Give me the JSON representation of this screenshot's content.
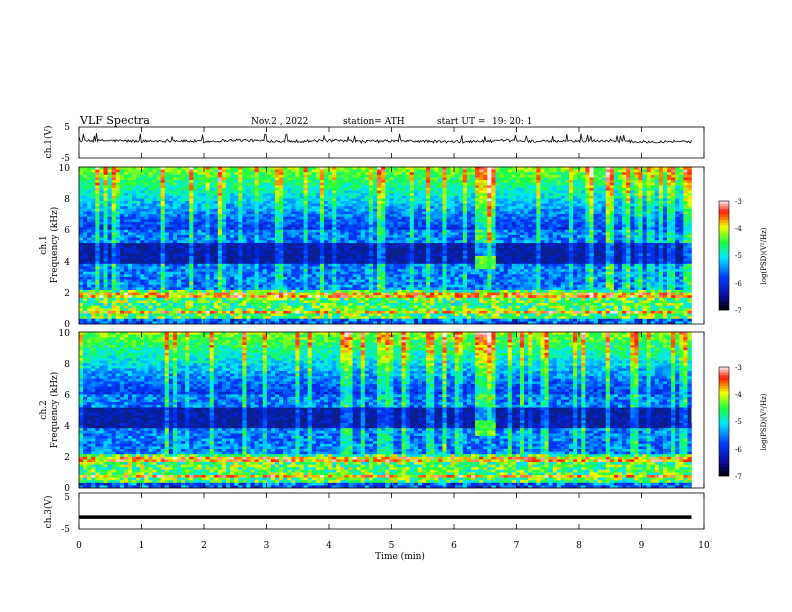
{
  "header": {
    "title": "VLF  Spectra",
    "date": "Nov.2  , 2022",
    "station": "station= ATH",
    "start_ut_label": "start  UT  =",
    "start_ut_value": "19: 20: 1"
  },
  "colors": {
    "spectrogram_background": "#0b1f8c",
    "waveform_line": "#000000",
    "colormap": [
      "#000000",
      "#0000ff",
      "#00ffff",
      "#00ff00",
      "#ffff00",
      "#ff0000",
      "#ffffff"
    ]
  },
  "chart_data": [
    {
      "type": "line",
      "name": "channel-1-waveform",
      "ylabel": "ch.1(V)",
      "ylim": [
        -5,
        5
      ],
      "yticks": [
        "5",
        "-5"
      ],
      "xlim": [
        0,
        10
      ],
      "approx_level": 0,
      "description_in_values": "noisy waveform near 0 V with short spikes up to about +2 V",
      "x": [
        0,
        0.5,
        1,
        1.5,
        2,
        2.5,
        3,
        3.5,
        4,
        4.5,
        5,
        5.5,
        6,
        6.5,
        7,
        7.5,
        8,
        8.5,
        9,
        9.5,
        9.8
      ],
      "y": [
        0.5,
        0.6,
        0.4,
        0.6,
        0.3,
        0.8,
        0.5,
        0.4,
        0.6,
        0.3,
        0.5,
        0.4,
        0.2,
        0.4,
        0.6,
        0.3,
        0.5,
        0.6,
        0.2,
        0.4,
        0.3
      ]
    },
    {
      "type": "heatmap",
      "name": "channel-1-spectrogram",
      "ylabel": "ch.1\nFrequency  (kHz)",
      "ylim": [
        0,
        10
      ],
      "yticks": [
        "10",
        "8",
        "6",
        "4",
        "2",
        "0"
      ],
      "xlim": [
        0,
        10
      ],
      "data_extent_min": [
        0,
        9.8
      ],
      "colorbar": {
        "label": "log(PSD)(V²/Hz)",
        "range": [
          -7,
          -3
        ],
        "ticks": [
          "-3",
          "-4",
          "-5",
          "-6",
          "-7"
        ]
      },
      "features": {
        "low_band_khz": [
          0,
          2.2
        ],
        "quiet_band_khz": [
          3.8,
          5.2
        ],
        "broadband_activity_khz": [
          6,
          10
        ],
        "burst_time_min": [
          6.35,
          6.65
        ],
        "burst_freq_khz": [
          3.5,
          4.4
        ]
      }
    },
    {
      "type": "heatmap",
      "name": "channel-2-spectrogram",
      "ylabel": "ch.2\nFrequency  (kHz)",
      "ylim": [
        0,
        10
      ],
      "yticks": [
        "10",
        "8",
        "6",
        "4",
        "2",
        "0"
      ],
      "xlim": [
        0,
        10
      ],
      "data_extent_min": [
        0,
        9.8
      ],
      "colorbar": {
        "label": "log(PSD)(V²/Hz)",
        "range": [
          -7,
          -3
        ],
        "ticks": [
          "-3",
          "-4",
          "-5",
          "-6",
          "-7"
        ]
      },
      "features": {
        "low_band_khz": [
          0,
          2.2
        ],
        "quiet_band_khz": [
          3.8,
          5.2
        ],
        "broadband_activity_khz": [
          6,
          10
        ],
        "burst_time_min": [
          6.35,
          6.65
        ],
        "burst_freq_khz": [
          3.3,
          4.4
        ]
      }
    },
    {
      "type": "line",
      "name": "channel-3-waveform",
      "ylabel": "ch.3(V)",
      "ylim": [
        -5,
        5
      ],
      "yticks": [
        "5",
        "-5"
      ],
      "xlim": [
        0,
        10
      ],
      "x": [
        0,
        9.8
      ],
      "y": [
        -1.7,
        -1.7
      ]
    }
  ],
  "xaxis": {
    "label": "Time  (min)",
    "ticks": [
      "0",
      "1",
      "2",
      "3",
      "4",
      "5",
      "6",
      "7",
      "8",
      "9",
      "10"
    ]
  }
}
